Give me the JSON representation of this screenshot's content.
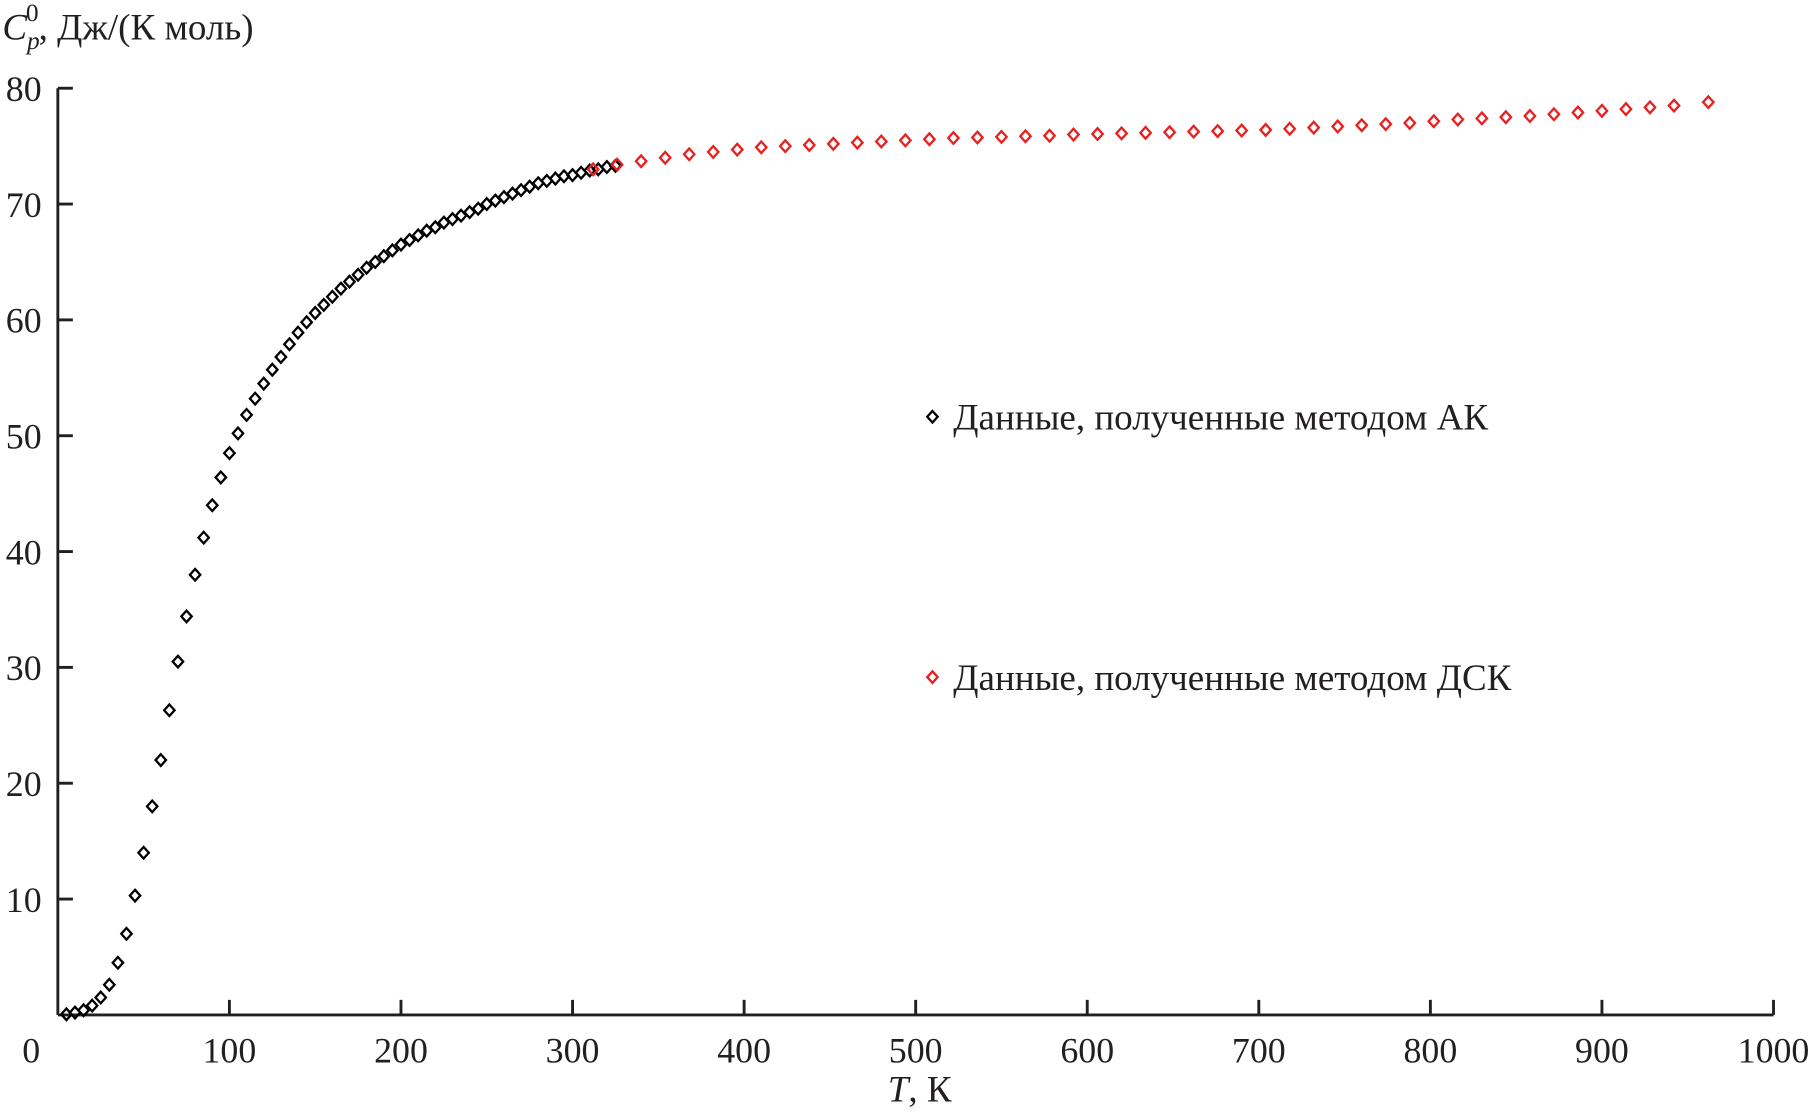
{
  "chart_data": {
    "type": "scatter",
    "ylabel": {
      "main": "C",
      "sub": "p",
      "sup": "0",
      "rest": ", Дж/(К моль)"
    },
    "xlabel": {
      "var": "T",
      "rest": ", К"
    },
    "xlim": [
      0,
      1000
    ],
    "ylim": [
      0,
      80
    ],
    "xticks": [
      "0",
      "100",
      "200",
      "300",
      "400",
      "500",
      "600",
      "700",
      "800",
      "900",
      "1000"
    ],
    "yticks": [
      "10",
      "20",
      "30",
      "40",
      "50",
      "60",
      "70",
      "80"
    ],
    "grid": false,
    "legend_position": "center-right",
    "series": [
      {
        "name": "Данные, полученные методом АК",
        "color": "#000000",
        "marker": "diamond-open",
        "x": [
          5,
          10,
          15,
          20,
          25,
          30,
          35,
          40,
          45,
          50,
          55,
          60,
          65,
          70,
          75,
          80,
          85,
          90,
          95,
          100,
          105,
          110,
          115,
          120,
          125,
          130,
          135,
          140,
          145,
          150,
          155,
          160,
          165,
          170,
          175,
          180,
          185,
          190,
          195,
          200,
          205,
          210,
          215,
          220,
          225,
          230,
          235,
          240,
          245,
          250,
          255,
          260,
          265,
          270,
          275,
          280,
          285,
          290,
          295,
          300,
          305,
          310,
          315,
          320,
          325
        ],
        "y": [
          0.05,
          0.2,
          0.4,
          0.8,
          1.5,
          2.6,
          4.5,
          7,
          10.3,
          14,
          18,
          22,
          26.3,
          30.5,
          34.4,
          38,
          41.2,
          44,
          46.4,
          48.5,
          50.2,
          51.8,
          53.2,
          54.5,
          55.7,
          56.8,
          57.9,
          58.9,
          59.8,
          60.6,
          61.3,
          62,
          62.7,
          63.3,
          63.9,
          64.5,
          65,
          65.5,
          66,
          66.5,
          66.9,
          67.3,
          67.7,
          68,
          68.4,
          68.7,
          69,
          69.3,
          69.6,
          70,
          70.3,
          70.6,
          70.9,
          71.2,
          71.5,
          71.8,
          72,
          72.2,
          72.4,
          72.5,
          72.7,
          72.9,
          73,
          73.2,
          73.3
        ]
      },
      {
        "name": "Данные, полученные методом ДСК",
        "color": "#e8201f",
        "marker": "diamond-open",
        "x": [
          312,
          326,
          340,
          354,
          368,
          382,
          396,
          410,
          424,
          438,
          452,
          466,
          480,
          494,
          508,
          522,
          536,
          550,
          564,
          578,
          592,
          606,
          620,
          634,
          648,
          662,
          676,
          690,
          704,
          718,
          732,
          746,
          760,
          774,
          788,
          802,
          816,
          830,
          844,
          858,
          872,
          886,
          900,
          914,
          928,
          942,
          962
        ],
        "y": [
          73.0,
          73.4,
          73.7,
          74.0,
          74.3,
          74.5,
          74.7,
          74.9,
          75.0,
          75.1,
          75.2,
          75.3,
          75.4,
          75.5,
          75.6,
          75.7,
          75.75,
          75.8,
          75.85,
          75.9,
          76.0,
          76.05,
          76.1,
          76.15,
          76.2,
          76.25,
          76.3,
          76.35,
          76.4,
          76.5,
          76.6,
          76.7,
          76.8,
          76.9,
          77.0,
          77.15,
          77.3,
          77.4,
          77.5,
          77.6,
          77.75,
          77.9,
          78.05,
          78.2,
          78.35,
          78.5,
          78.8
        ]
      }
    ]
  }
}
